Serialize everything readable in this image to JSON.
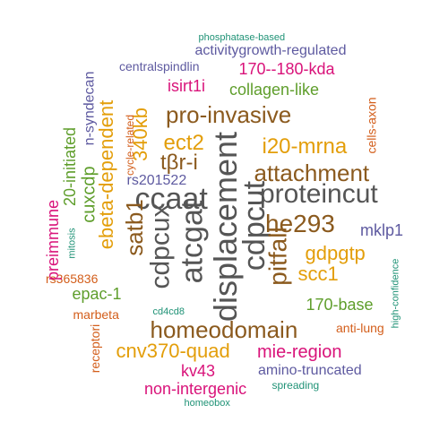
{
  "colors": {
    "dark": "#555555",
    "brown": "#8B5A1E",
    "amber": "#E39E0A",
    "olive": "#5F9E2C",
    "purple": "#5E5AA0",
    "magenta": "#D9137A",
    "orange": "#D35E1B",
    "teal": "#1F9276"
  },
  "words": [
    {
      "text": "phosphatase-based",
      "color": "teal"
    },
    {
      "text": "activitygrowth-regulated",
      "color": "purple"
    },
    {
      "text": "centralspindlin",
      "color": "purple"
    },
    {
      "text": "170--180-kda",
      "color": "magenta"
    },
    {
      "text": "isirt1i",
      "color": "magenta"
    },
    {
      "text": "collagen-like",
      "color": "olive"
    },
    {
      "text": "pro-invasive",
      "color": "brown"
    },
    {
      "text": "i20-mrna",
      "color": "amber"
    },
    {
      "text": "attachment",
      "color": "brown"
    },
    {
      "text": "proteincut",
      "color": "dark"
    },
    {
      "text": "ect2",
      "color": "amber"
    },
    {
      "text": "tβr-i",
      "color": "brown"
    },
    {
      "text": "rs201522",
      "color": "purple"
    },
    {
      "text": "ccaat",
      "color": "dark"
    },
    {
      "text": "he293",
      "color": "brown"
    },
    {
      "text": "mklp1",
      "color": "purple"
    },
    {
      "text": "gdpgtp",
      "color": "amber"
    },
    {
      "text": "scc1",
      "color": "amber"
    },
    {
      "text": "170-base",
      "color": "olive"
    },
    {
      "text": "homeodomain",
      "color": "brown"
    },
    {
      "text": "cnv370-quad",
      "color": "amber"
    },
    {
      "text": "mie-region",
      "color": "magenta"
    },
    {
      "text": "anti-lung",
      "color": "orange"
    },
    {
      "text": "kv43",
      "color": "magenta"
    },
    {
      "text": "amino-truncated",
      "color": "purple"
    },
    {
      "text": "non-intergenic",
      "color": "magenta"
    },
    {
      "text": "spreading",
      "color": "teal"
    },
    {
      "text": "homeobox",
      "color": "teal"
    },
    {
      "text": "rs365836",
      "color": "orange"
    },
    {
      "text": "epac-1",
      "color": "olive"
    },
    {
      "text": "marbeta",
      "color": "orange"
    },
    {
      "text": "cd4cd8",
      "color": "teal"
    },
    {
      "text": "n-syndecan",
      "color": "purple"
    },
    {
      "text": "20-initiated",
      "color": "olive"
    },
    {
      "text": "cuxcdp",
      "color": "olive"
    },
    {
      "text": "preimmune",
      "color": "magenta"
    },
    {
      "text": "mitosis",
      "color": "teal"
    },
    {
      "text": "ebeta-dependent",
      "color": "amber"
    },
    {
      "text": "340kb",
      "color": "amber"
    },
    {
      "text": "cycle-related",
      "color": "orange"
    },
    {
      "text": "satb1",
      "color": "brown"
    },
    {
      "text": "cdpcux",
      "color": "dark"
    },
    {
      "text": "atcgat",
      "color": "dark"
    },
    {
      "text": "displacement",
      "color": "dark"
    },
    {
      "text": "cdpcut",
      "color": "dark"
    },
    {
      "text": "pitfall",
      "color": "brown"
    },
    {
      "text": "cells-axon",
      "color": "orange"
    },
    {
      "text": "high-confidence",
      "color": "teal"
    },
    {
      "text": "receptori",
      "color": "orange"
    }
  ]
}
